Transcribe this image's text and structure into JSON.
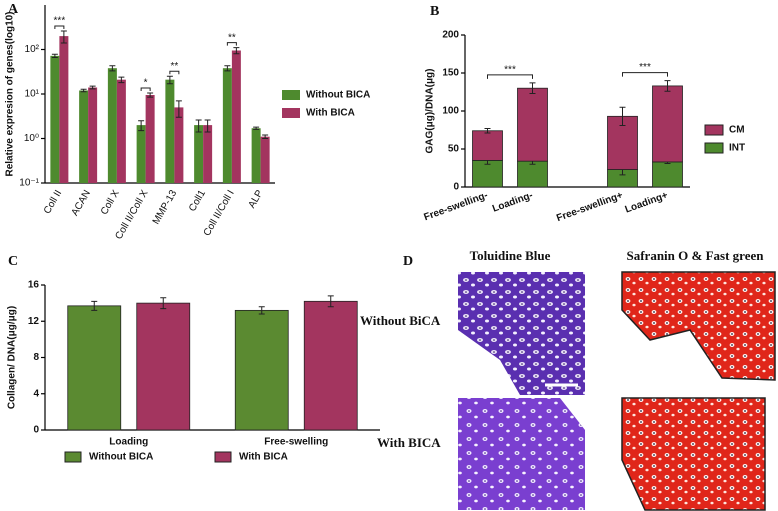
{
  "chart_data": [
    {
      "type": "bar",
      "panel": "A",
      "y_label": "Relative expresion of genes(log10)",
      "log_scale": true,
      "ylim": [
        0.1,
        1000
      ],
      "yticks": [
        {
          "value": 0.1,
          "label": "10⁻¹"
        },
        {
          "value": 1,
          "label": "10⁰"
        },
        {
          "value": 10,
          "label": "10¹"
        },
        {
          "value": 100,
          "label": "10²"
        }
      ],
      "categories": [
        "Coll II",
        "ACAN",
        "Coll X",
        "Coll II/Coll X",
        "MMP-13",
        "Coll1",
        "Coll II/Coll I",
        "ALP"
      ],
      "series": [
        {
          "name": "Without BICA",
          "color": "#4e8a2e",
          "values": [
            72,
            12,
            38,
            2,
            21,
            2,
            38,
            1.7
          ],
          "errors": [
            6,
            0.8,
            5,
            0.5,
            4,
            0.6,
            5,
            0.1
          ]
        },
        {
          "name": "With BICA",
          "color": "#a3355f",
          "values": [
            200,
            14,
            21,
            9.5,
            5,
            2,
            95,
            1.1
          ],
          "errors": [
            60,
            1,
            3,
            1,
            2,
            0.6,
            15,
            0.1
          ]
        }
      ],
      "significance": [
        "***",
        null,
        null,
        "*",
        "**",
        null,
        "**",
        null
      ],
      "legend": "right"
    },
    {
      "type": "bar",
      "panel": "B",
      "y_label": "GAG(μg)/DNA(μg)",
      "stacked": true,
      "ylim": [
        0,
        200
      ],
      "yticks": [
        0,
        50,
        100,
        150,
        200
      ],
      "categories": [
        "Free-swelling-",
        "Loading-",
        null,
        "Free-swelling+",
        "Loading+"
      ],
      "series": [
        {
          "name": "INT",
          "color": "#4e8a2e",
          "values": [
            35,
            34,
            null,
            23,
            33
          ],
          "errors": [
            5,
            4,
            null,
            7,
            2
          ]
        },
        {
          "name": "CM",
          "color": "#a3355f",
          "values": [
            39,
            96,
            null,
            70,
            100
          ],
          "errors": [
            3,
            7,
            null,
            12,
            7
          ]
        }
      ],
      "brackets": [
        {
          "from": "Free-swelling-",
          "to": "Loading-",
          "text": "***"
        },
        {
          "from": "Free-swelling+",
          "to": "Loading+",
          "text": "***"
        }
      ],
      "legend": "right"
    },
    {
      "type": "bar",
      "panel": "C",
      "y_label": "Collagen/ DNA(μg/μg)",
      "ylim": [
        0,
        16
      ],
      "yticks": [
        0,
        4,
        8,
        12,
        16
      ],
      "categories": [
        "Loading",
        "Free-swelling"
      ],
      "series": [
        {
          "name": "Without BICA",
          "color": "#5b8a31",
          "values": [
            13.7,
            13.2
          ],
          "errors": [
            0.5,
            0.4
          ]
        },
        {
          "name": "With BICA",
          "color": "#a3355f",
          "values": [
            14.0,
            14.2
          ],
          "errors": [
            0.6,
            0.6
          ]
        }
      ],
      "legend": "bottom"
    }
  ],
  "figure_d": {
    "panel": "D",
    "columns": [
      "Toluidine Blue",
      "Safranin O & Fast green"
    ],
    "rows": [
      "Without BiCA",
      "With BICA"
    ]
  }
}
